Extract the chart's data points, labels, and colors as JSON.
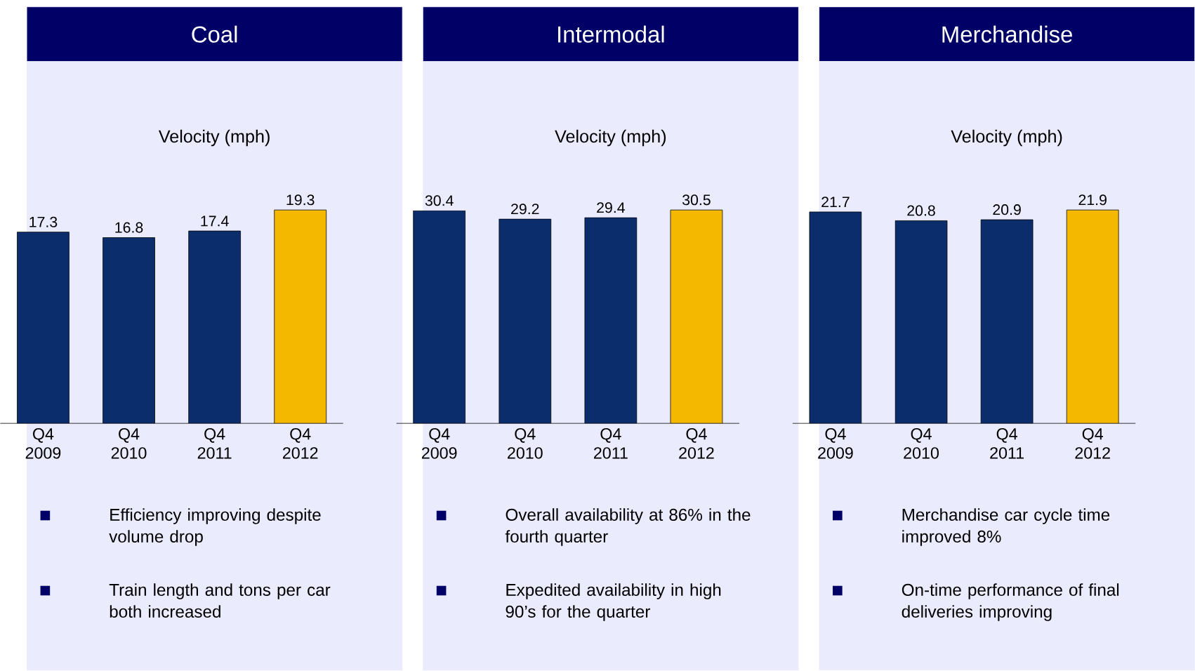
{
  "chart_data": [
    {
      "type": "bar",
      "title": "Coal",
      "subtitle": "Velocity (mph)",
      "categories": [
        "Q4 2009",
        "Q4 2010",
        "Q4 2011",
        "Q4 2012"
      ],
      "values": [
        17.3,
        16.8,
        17.4,
        19.3
      ],
      "colors": [
        "#0b2d6b",
        "#0b2d6b",
        "#0b2d6b",
        "#f5b800"
      ],
      "data_labels": true,
      "tick_labels": "x",
      "annotations": [
        "Efficiency improving despite volume drop",
        "Train length and tons per car both increased"
      ]
    },
    {
      "type": "bar",
      "title": "Intermodal",
      "subtitle": "Velocity (mph)",
      "categories": [
        "Q4 2009",
        "Q4 2010",
        "Q4 2011",
        "Q4 2012"
      ],
      "values": [
        30.4,
        29.2,
        29.4,
        30.5
      ],
      "colors": [
        "#0b2d6b",
        "#0b2d6b",
        "#0b2d6b",
        "#f5b800"
      ],
      "data_labels": true,
      "tick_labels": "x",
      "annotations": [
        "Overall availability at 86% in the fourth quarter",
        "Expedited availability in high 90’s for the quarter"
      ]
    },
    {
      "type": "bar",
      "title": "Merchandise",
      "subtitle": "Velocity (mph)",
      "categories": [
        "Q4 2009",
        "Q4 2010",
        "Q4 2011",
        "Q4 2012"
      ],
      "values": [
        21.7,
        20.8,
        20.9,
        21.9
      ],
      "colors": [
        "#0b2d6b",
        "#0b2d6b",
        "#0b2d6b",
        "#f5b800"
      ],
      "data_labels": true,
      "tick_labels": "x",
      "annotations": [
        "Merchandise car cycle time improved 8%",
        "On-time performance of final deliveries improving"
      ]
    }
  ]
}
